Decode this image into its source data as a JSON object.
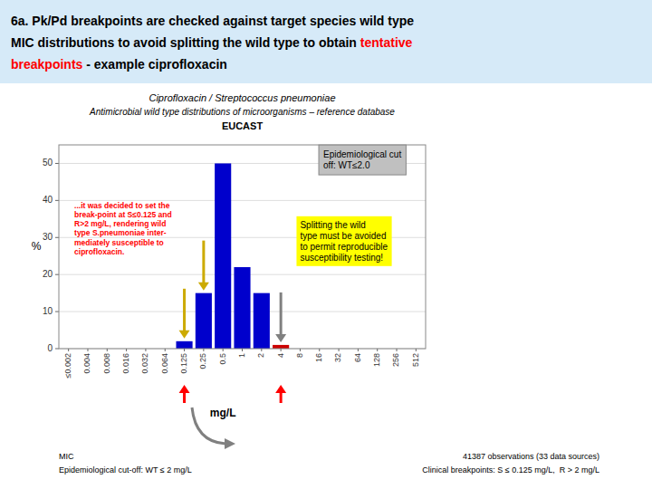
{
  "chart_data": {
    "type": "bar",
    "title": [
      [
        {
          "text": "6a. Pk/Pd breakpoints are checked against target species wild type",
          "color": "black"
        }
      ],
      [
        {
          "text": "MIC distributions to avoid splitting the wild type to obtain ",
          "color": "black"
        },
        {
          "text": "tentative",
          "color": "red"
        }
      ],
      [
        {
          "text": "breakpoints",
          "color": "red"
        },
        {
          "text": " - example ciprofloxacin",
          "color": "black"
        }
      ]
    ],
    "subtitle": [
      "Ciprofloxacin / Streptococcus pneumoniae",
      "Antimicrobial wild type distributions of microorganisms – reference database",
      "EUCAST"
    ],
    "xlabel": "mg/L",
    "ylabel": "%",
    "categories": [
      "≤0.002",
      "0.004",
      "0.008",
      "0.016",
      "0.032",
      "0.064",
      "0.125",
      "0.25",
      "0.5",
      "1",
      "2",
      "4",
      "8",
      "16",
      "32",
      "64",
      "128",
      "256",
      "512"
    ],
    "values": [
      0,
      0,
      0,
      0,
      0,
      0,
      2,
      15,
      50,
      22,
      15,
      1,
      0,
      0,
      0,
      0,
      0,
      0,
      0
    ],
    "colors": [
      "#0000cc",
      "#0000cc",
      "#0000cc",
      "#0000cc",
      "#0000cc",
      "#0000cc",
      "#0000cc",
      "#0000cc",
      "#0000cc",
      "#0000cc",
      "#0000cc",
      "#cc0000",
      "#0000cc",
      "#0000cc",
      "#0000cc",
      "#0000cc",
      "#0000cc",
      "#0000cc",
      "#0000cc"
    ],
    "ylim": [
      0,
      55
    ],
    "yticks": [
      0,
      10,
      20,
      30,
      40,
      50
    ],
    "grid": true,
    "annotations": [
      {
        "text": "...it was decided to set the\nbreak-point at S≤0.125 and\nR>2 mg/L, rendering wild\ntype S.pneumoniae inter-\nmediately susceptible to\nciprofloxacin.",
        "color": "red"
      },
      {
        "text": "Epidemiological cut\noff: WT≤2.0"
      },
      {
        "text": "Splitting the wild\ntype must be avoided\nto permit reproducible\nsusceptibility testing!"
      }
    ],
    "arrows": [
      {
        "at": "0.125",
        "color": "#ccaa00",
        "direction": "down"
      },
      {
        "at": "0.25",
        "color": "#ccaa00",
        "direction": "down"
      },
      {
        "at": "4",
        "color": "gray",
        "direction": "down"
      },
      {
        "at": "0.125",
        "color": "red",
        "direction": "up"
      },
      {
        "at": "4",
        "color": "red",
        "direction": "up"
      }
    ],
    "footer_left": [
      "MIC",
      "Epidemiological cut-off: WT ≤ 2 mg/L"
    ],
    "footer_right": [
      "41387 observations (33 data sources)",
      "Clinical breakpoints: S ≤ 0.125 mg/L,  R > 2 mg/L"
    ]
  }
}
